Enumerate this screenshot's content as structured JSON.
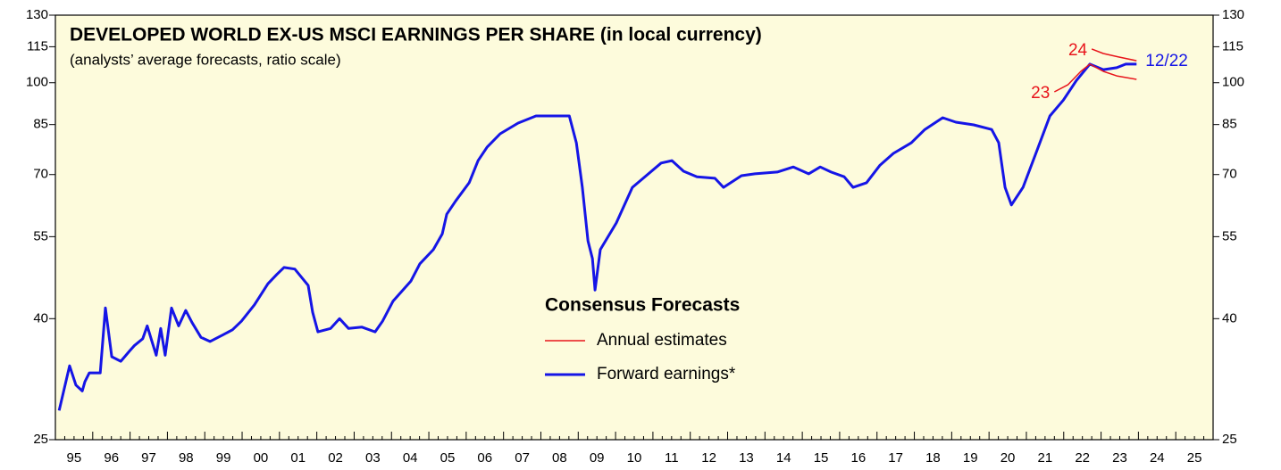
{
  "chart_data": {
    "type": "line",
    "title": "DEVELOPED WORLD EX-US MSCI EARNINGS PER SHARE (in local currency)",
    "subtitle": "(analysts’ average forecasts, ratio scale)",
    "legend_title": "Consensus Forecasts",
    "legend": [
      {
        "name": "Annual estimates",
        "color": "#e8141b"
      },
      {
        "name": "Forward earnings*",
        "color": "#1515e6"
      }
    ],
    "log_scale": true,
    "xlim": [
      1995,
      2026
    ],
    "xticks": [
      {
        "value": 1995,
        "label": "95"
      },
      {
        "value": 1996,
        "label": "96"
      },
      {
        "value": 1997,
        "label": "97"
      },
      {
        "value": 1998,
        "label": "98"
      },
      {
        "value": 1999,
        "label": "99"
      },
      {
        "value": 2000,
        "label": "00"
      },
      {
        "value": 2001,
        "label": "01"
      },
      {
        "value": 2002,
        "label": "02"
      },
      {
        "value": 2003,
        "label": "03"
      },
      {
        "value": 2004,
        "label": "04"
      },
      {
        "value": 2005,
        "label": "05"
      },
      {
        "value": 2006,
        "label": "06"
      },
      {
        "value": 2007,
        "label": "07"
      },
      {
        "value": 2008,
        "label": "08"
      },
      {
        "value": 2009,
        "label": "09"
      },
      {
        "value": 2010,
        "label": "10"
      },
      {
        "value": 2011,
        "label": "11"
      },
      {
        "value": 2012,
        "label": "12"
      },
      {
        "value": 2013,
        "label": "13"
      },
      {
        "value": 2014,
        "label": "14"
      },
      {
        "value": 2015,
        "label": "15"
      },
      {
        "value": 2016,
        "label": "16"
      },
      {
        "value": 2017,
        "label": "17"
      },
      {
        "value": 2018,
        "label": "18"
      },
      {
        "value": 2019,
        "label": "19"
      },
      {
        "value": 2020,
        "label": "20"
      },
      {
        "value": 2021,
        "label": "21"
      },
      {
        "value": 2022,
        "label": "22"
      },
      {
        "value": 2023,
        "label": "23"
      },
      {
        "value": 2024,
        "label": "24"
      },
      {
        "value": 2025,
        "label": "25"
      }
    ],
    "ylim": [
      25,
      130
    ],
    "yticks": [
      25,
      40,
      55,
      70,
      85,
      100,
      115,
      130
    ],
    "y2lim": [
      25,
      130
    ],
    "y2ticks": [
      25,
      40,
      55,
      70,
      85,
      100,
      115,
      130
    ],
    "series": [
      {
        "name": "Forward earnings*",
        "color": "#1515e6",
        "end_label": "12/22",
        "x": [
          1995.1,
          1995.38,
          1995.55,
          1995.72,
          1995.79,
          1995.91,
          1996.2,
          1996.34,
          1996.51,
          1996.75,
          1996.99,
          1997.11,
          1997.34,
          1997.46,
          1997.58,
          1997.7,
          1997.82,
          1997.94,
          1998.11,
          1998.3,
          1998.49,
          1998.66,
          1998.9,
          1999.14,
          1999.5,
          1999.74,
          1999.98,
          2000.33,
          2000.69,
          2000.93,
          2001.12,
          2001.41,
          2001.77,
          2001.89,
          2002.03,
          2002.37,
          2002.61,
          2002.85,
          2003.21,
          2003.56,
          2003.76,
          2004.04,
          2004.52,
          2004.76,
          2005.12,
          2005.36,
          2005.48,
          2005.72,
          2006.08,
          2006.32,
          2006.56,
          2006.91,
          2007.39,
          2007.87,
          2008.35,
          2008.76,
          2008.95,
          2009.11,
          2009.26,
          2009.38,
          2009.45,
          2009.59,
          2010.02,
          2010.45,
          2010.74,
          2011.22,
          2011.51,
          2011.82,
          2012.18,
          2012.66,
          2012.89,
          2013.37,
          2013.73,
          2014.33,
          2014.76,
          2015.17,
          2015.48,
          2015.77,
          2016.12,
          2016.36,
          2016.72,
          2017.08,
          2017.44,
          2017.92,
          2018.28,
          2018.76,
          2019.11,
          2019.59,
          2020.07,
          2020.26,
          2020.43,
          2020.6,
          2020.91,
          2021.27,
          2021.63,
          2021.99,
          2022.34,
          2022.7,
          2023.06,
          2023.42,
          2023.66,
          2023.95
        ],
        "values": [
          28.0,
          33.3,
          30.9,
          30.2,
          31.3,
          32.4,
          32.4,
          41.7,
          34.5,
          33.9,
          35.3,
          36.0,
          37.0,
          38.9,
          36.7,
          34.7,
          38.5,
          34.7,
          41.7,
          38.9,
          41.3,
          39.4,
          37.2,
          36.6,
          37.6,
          38.3,
          39.6,
          42.2,
          45.8,
          47.5,
          48.8,
          48.5,
          45.5,
          41.0,
          38.0,
          38.5,
          40.0,
          38.5,
          38.7,
          38.0,
          39.6,
          42.8,
          46.3,
          49.5,
          52.3,
          55.6,
          60.0,
          63.2,
          67.8,
          73.9,
          77.9,
          82.0,
          85.5,
          87.9,
          87.9,
          87.9,
          79.2,
          66.6,
          54.1,
          50.5,
          44.7,
          52.3,
          58.0,
          66.6,
          69.0,
          73.2,
          73.9,
          70.9,
          69.4,
          69.0,
          66.6,
          69.7,
          70.2,
          70.7,
          72.1,
          70.2,
          72.1,
          70.7,
          69.4,
          66.6,
          67.8,
          72.6,
          76.0,
          79.2,
          83.4,
          87.3,
          85.8,
          84.9,
          83.4,
          79.2,
          66.6,
          62.2,
          66.6,
          76.5,
          87.9,
          93.5,
          100.9,
          107.5,
          105.2,
          106.0,
          107.5,
          107.5
        ]
      },
      {
        "name": "23",
        "color": "#e8141b",
        "x": [
          2021.75,
          2022.11,
          2022.46,
          2022.7,
          2023.06,
          2023.42,
          2023.95
        ],
        "values": [
          96.5,
          99.2,
          104.5,
          107.5,
          104.5,
          102.7,
          101.3
        ]
      },
      {
        "name": "24",
        "color": "#e8141b",
        "x": [
          2022.75,
          2023.06,
          2023.47,
          2023.95
        ],
        "values": [
          114.0,
          112.0,
          110.5,
          108.9
        ]
      }
    ]
  }
}
